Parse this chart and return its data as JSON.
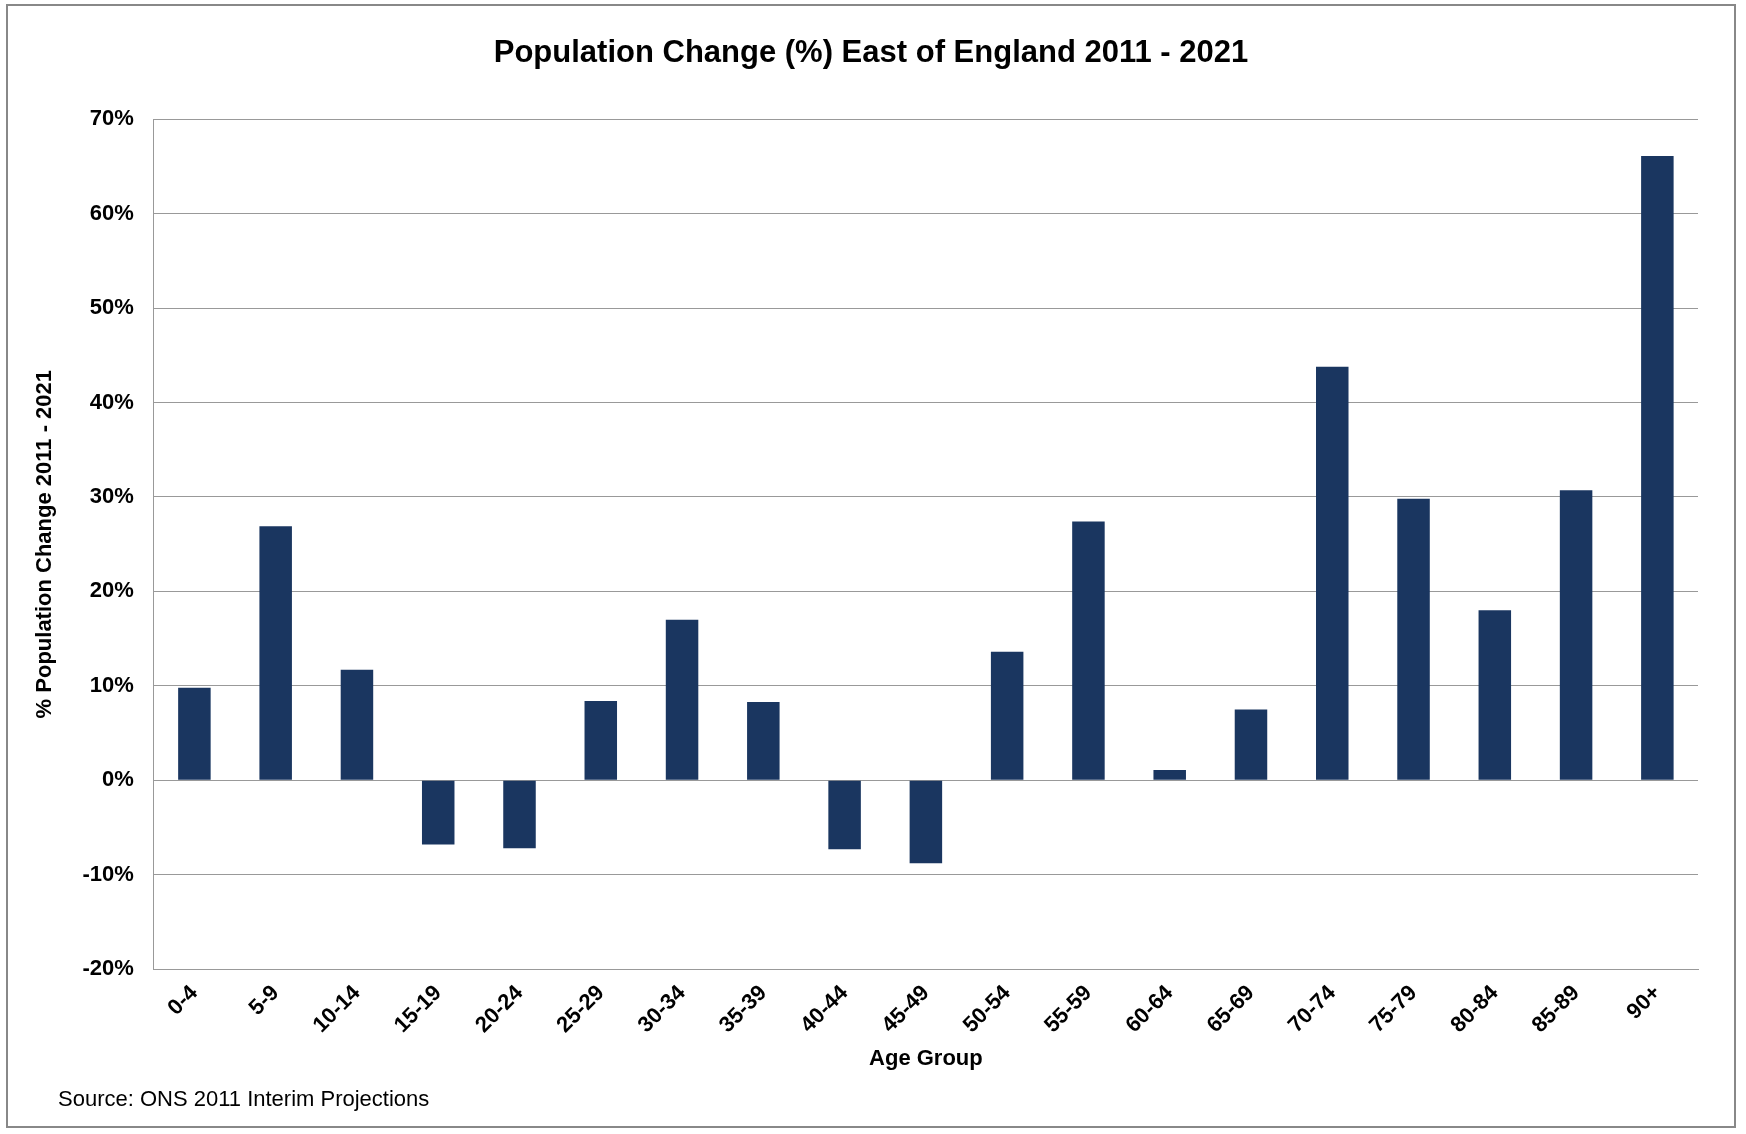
{
  "chart_data": {
    "type": "bar",
    "title": "Population Change (%) East of England 2011 - 2021",
    "xlabel": "Age Group",
    "ylabel": "% Population Change 2011 - 2021",
    "categories": [
      "0-4",
      "5-9",
      "10-14",
      "15-19",
      "20-24",
      "25-29",
      "30-34",
      "35-39",
      "40-44",
      "45-49",
      "50-54",
      "55-59",
      "60-64",
      "65-69",
      "70-74",
      "75-79",
      "80-84",
      "85-89",
      "90+"
    ],
    "values": [
      9.8,
      26.9,
      11.7,
      -6.8,
      -7.2,
      8.4,
      17.0,
      8.3,
      -7.3,
      -8.8,
      13.6,
      27.4,
      1.1,
      7.5,
      43.8,
      29.8,
      18.0,
      30.7,
      66.1
    ],
    "color": "#1a3660",
    "ylim": [
      -20,
      70
    ],
    "yticks": [
      {
        "value": -20,
        "label": "-20%"
      },
      {
        "value": -10,
        "label": "-10%"
      },
      {
        "value": 0,
        "label": "0%"
      },
      {
        "value": 10,
        "label": "10%"
      },
      {
        "value": 20,
        "label": "20%"
      },
      {
        "value": 30,
        "label": "30%"
      },
      {
        "value": 40,
        "label": "40%"
      },
      {
        "value": 50,
        "label": "50%"
      },
      {
        "value": 60,
        "label": "60%"
      },
      {
        "value": 70,
        "label": "70%"
      }
    ],
    "grid": "y",
    "legend": false,
    "annotations": [
      "Source: ONS 2011 Interim Projections"
    ]
  }
}
